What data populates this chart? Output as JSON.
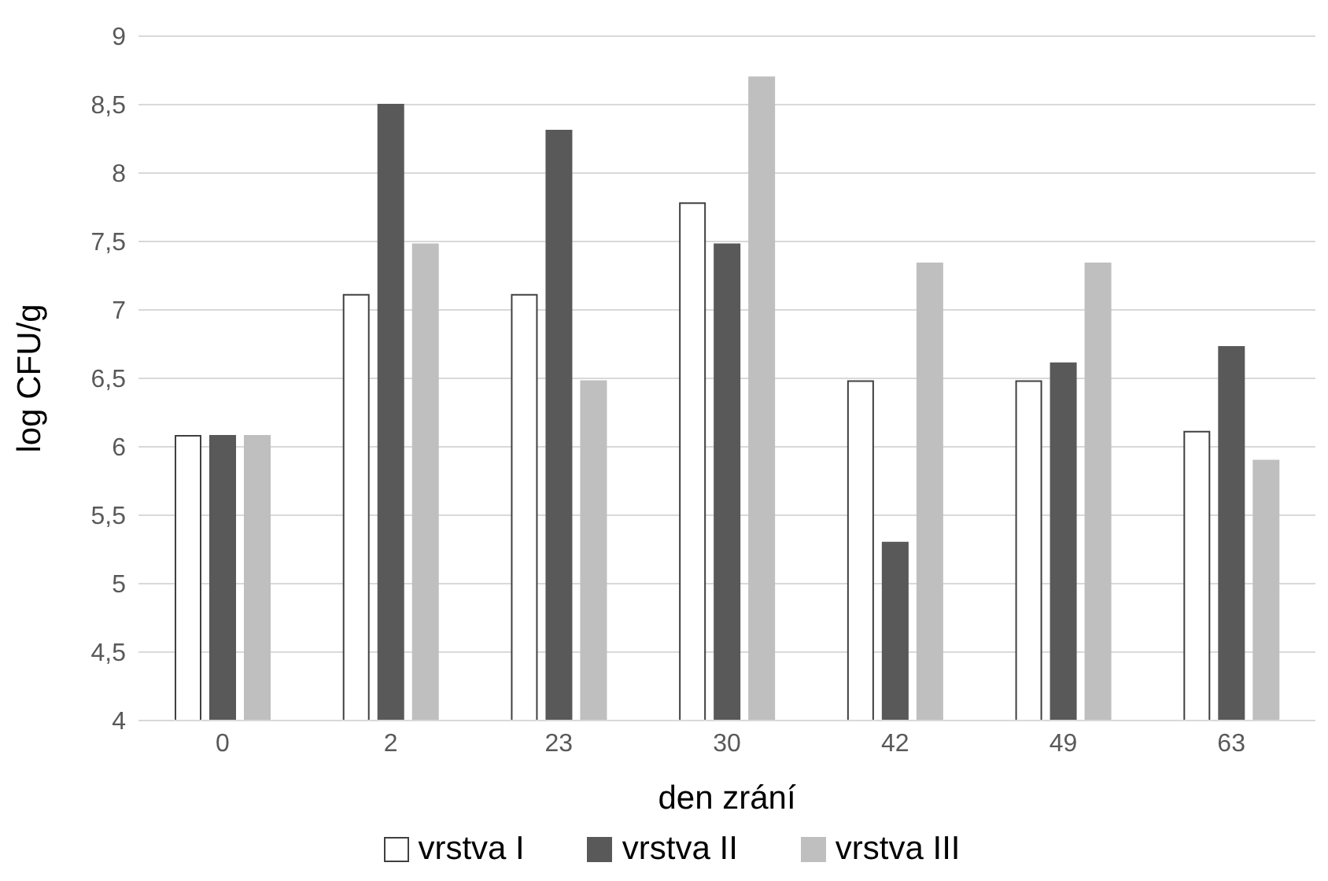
{
  "chart_data": {
    "type": "bar",
    "xlabel": "den zrání",
    "ylabel": "log CFU/g",
    "categories": [
      "0",
      "2",
      "23",
      "30",
      "42",
      "49",
      "63"
    ],
    "series": [
      {
        "name": "vrstva I",
        "color": "#ffffff",
        "values": [
          6.08,
          7.11,
          7.11,
          7.78,
          6.48,
          6.48,
          6.11
        ]
      },
      {
        "name": "vrstva II",
        "color": "#595959",
        "values": [
          6.08,
          8.5,
          8.31,
          7.48,
          5.3,
          6.61,
          6.73
        ]
      },
      {
        "name": "vrstva III",
        "color": "#bfbfbf",
        "values": [
          6.08,
          7.48,
          6.48,
          8.7,
          7.34,
          7.34,
          5.9
        ]
      }
    ],
    "ylim": [
      4,
      9
    ],
    "yticks": [
      4,
      {
        "value": 4.5,
        "label": "4,5"
      },
      5,
      {
        "value": 5.5,
        "label": "5,5"
      },
      6,
      {
        "value": 6.5,
        "label": "6,5"
      },
      7,
      {
        "value": 7.5,
        "label": "7,5"
      },
      8,
      {
        "value": 8.5,
        "label": "8,5"
      },
      9
    ],
    "grid": "y",
    "legend": "bottom"
  }
}
